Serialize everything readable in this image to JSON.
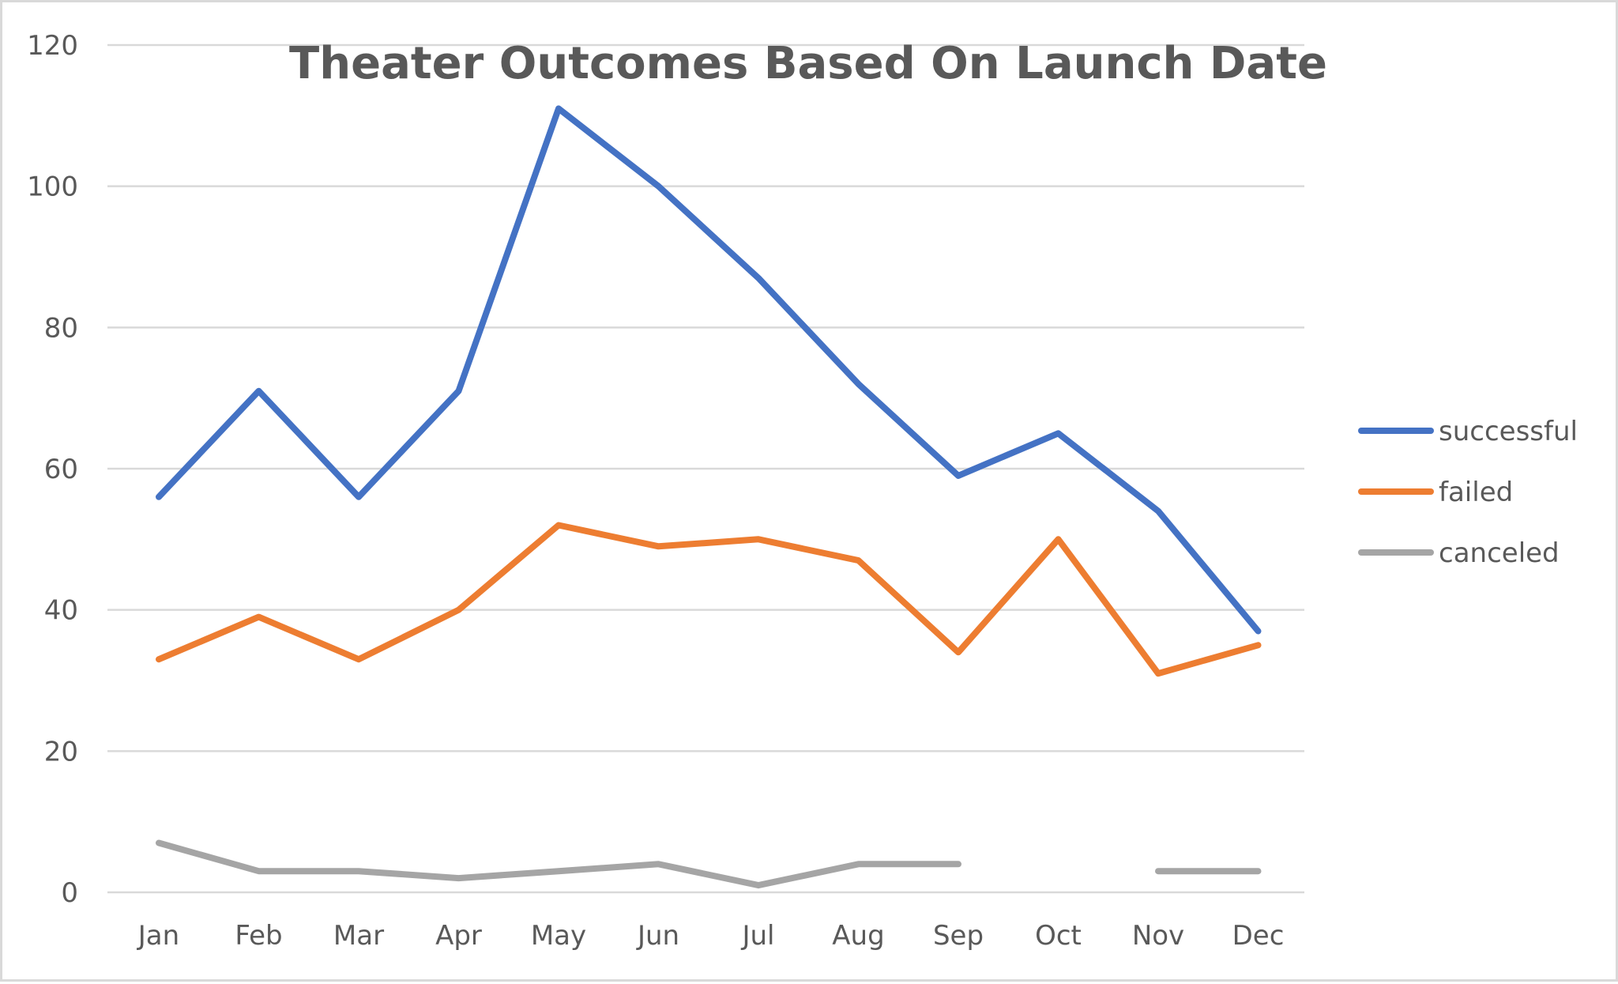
{
  "chart_data": {
    "type": "line",
    "title": "Theater Outcomes Based On Launch Date",
    "xlabel": "",
    "ylabel": "",
    "categories": [
      "Jan",
      "Feb",
      "Mar",
      "Apr",
      "May",
      "Jun",
      "Jul",
      "Aug",
      "Sep",
      "Oct",
      "Nov",
      "Dec"
    ],
    "y_ticks": [
      "0",
      "20",
      "40",
      "60",
      "80",
      "100",
      "120"
    ],
    "ylim": [
      0,
      120
    ],
    "grid": true,
    "legend_position": "right",
    "series": [
      {
        "name": "successful",
        "color": "#4472c4",
        "values": [
          56,
          71,
          56,
          71,
          111,
          100,
          87,
          72,
          59,
          65,
          54,
          37
        ]
      },
      {
        "name": "failed",
        "color": "#ed7d31",
        "values": [
          33,
          39,
          33,
          40,
          52,
          49,
          50,
          47,
          34,
          50,
          31,
          35
        ]
      },
      {
        "name": "canceled",
        "color": "#a5a5a5",
        "values": [
          7,
          3,
          3,
          2,
          3,
          4,
          1,
          4,
          4,
          null,
          3,
          3
        ]
      }
    ]
  }
}
